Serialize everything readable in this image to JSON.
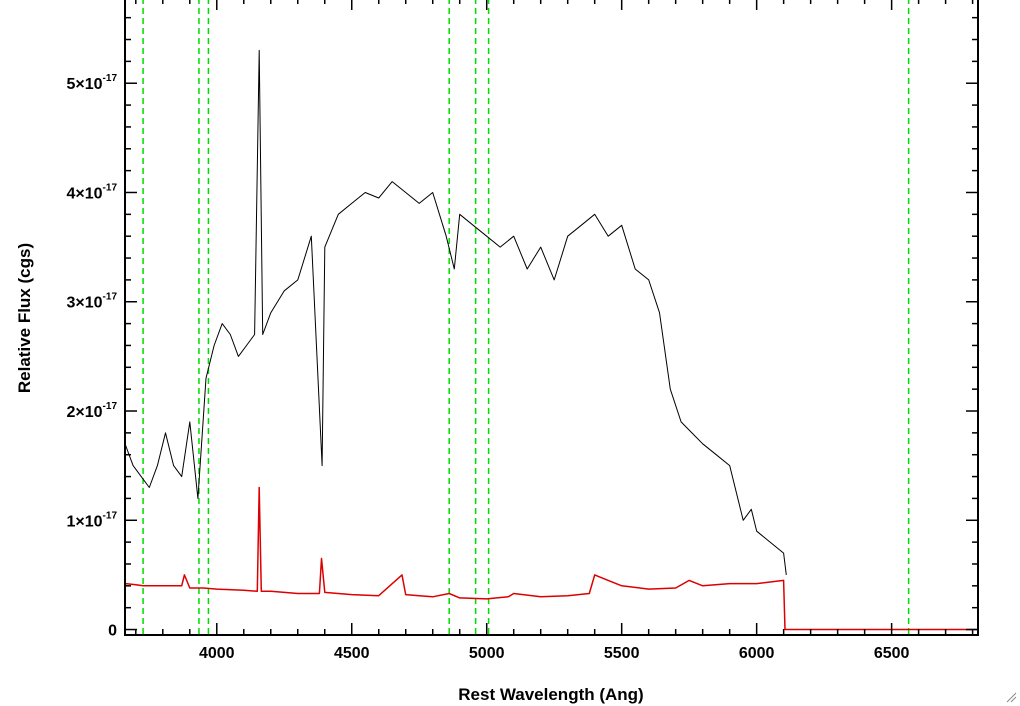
{
  "chart_data": {
    "type": "line",
    "title": "",
    "xlabel": "Rest Wavelength (Ang)",
    "ylabel": "Relative Flux (cgs)",
    "xlim": [
      3660,
      6820
    ],
    "ylim": [
      -0.05,
      5.78
    ],
    "y_unit_exponent": "-17",
    "x_ticks": [
      4000,
      4500,
      5000,
      5500,
      6000,
      6500
    ],
    "x_tick_labels": [
      "4000",
      "4500",
      "5000",
      "5500",
      "6000",
      "6500"
    ],
    "y_ticks": [
      0,
      1,
      2,
      3,
      4,
      5
    ],
    "y_tick_labels": [
      "0",
      "1×10",
      "2×10",
      "3×10",
      "4×10",
      "5×10"
    ],
    "grid": false,
    "legend": "none",
    "reference_lines": {
      "color": "#00dd00",
      "style": "dashed",
      "x": [
        3727,
        3934,
        3969,
        4861,
        4959,
        5007,
        6563
      ]
    },
    "series": [
      {
        "color": "#000000",
        "x": [
          3660,
          3690,
          3720,
          3750,
          3780,
          3810,
          3840,
          3870,
          3900,
          3930,
          3960,
          3990,
          4020,
          4050,
          4080,
          4110,
          4140,
          4157,
          4170,
          4200,
          4250,
          4300,
          4350,
          4390,
          4400,
          4450,
          4500,
          4550,
          4600,
          4650,
          4700,
          4750,
          4800,
          4850,
          4880,
          4900,
          4950,
          5000,
          5050,
          5100,
          5150,
          5200,
          5250,
          5300,
          5350,
          5400,
          5450,
          5500,
          5550,
          5600,
          5640,
          5680,
          5720,
          5760,
          5800,
          5850,
          5900,
          5950,
          5980,
          6000,
          6050,
          6100,
          6110
        ],
        "y": [
          1.7,
          1.5,
          1.4,
          1.3,
          1.5,
          1.8,
          1.5,
          1.4,
          1.9,
          1.2,
          2.3,
          2.6,
          2.8,
          2.7,
          2.5,
          2.6,
          2.7,
          5.3,
          2.7,
          2.9,
          3.1,
          3.2,
          3.6,
          1.5,
          3.5,
          3.8,
          3.9,
          4.0,
          3.95,
          4.1,
          4.0,
          3.9,
          4.0,
          3.6,
          3.3,
          3.8,
          3.7,
          3.6,
          3.5,
          3.6,
          3.3,
          3.5,
          3.2,
          3.6,
          3.7,
          3.8,
          3.6,
          3.7,
          3.3,
          3.2,
          2.9,
          2.2,
          1.9,
          1.8,
          1.7,
          1.6,
          1.5,
          1.0,
          1.1,
          0.9,
          0.8,
          0.7,
          0.5
        ]
      },
      {
        "color": "#dd0000",
        "x": [
          3660,
          3700,
          3727,
          3800,
          3870,
          3880,
          3900,
          3950,
          4000,
          4100,
          4150,
          4157,
          4165,
          4200,
          4300,
          4380,
          4388,
          4400,
          4500,
          4600,
          4686,
          4700,
          4750,
          4800,
          4861,
          4900,
          5000,
          5080,
          5100,
          5200,
          5300,
          5380,
          5400,
          5450,
          5500,
          5600,
          5700,
          5750,
          5800,
          5900,
          6000,
          6100,
          6105,
          6110,
          6300,
          6500,
          6820
        ],
        "y": [
          0.42,
          0.41,
          0.4,
          0.4,
          0.4,
          0.5,
          0.38,
          0.38,
          0.37,
          0.36,
          0.35,
          1.3,
          0.35,
          0.35,
          0.33,
          0.33,
          0.65,
          0.34,
          0.32,
          0.31,
          0.5,
          0.32,
          0.31,
          0.3,
          0.33,
          0.29,
          0.28,
          0.3,
          0.33,
          0.3,
          0.31,
          0.33,
          0.5,
          0.45,
          0.4,
          0.37,
          0.38,
          0.45,
          0.4,
          0.42,
          0.42,
          0.45,
          0.0,
          0.0,
          0.0,
          0.0,
          0.0
        ]
      }
    ]
  }
}
